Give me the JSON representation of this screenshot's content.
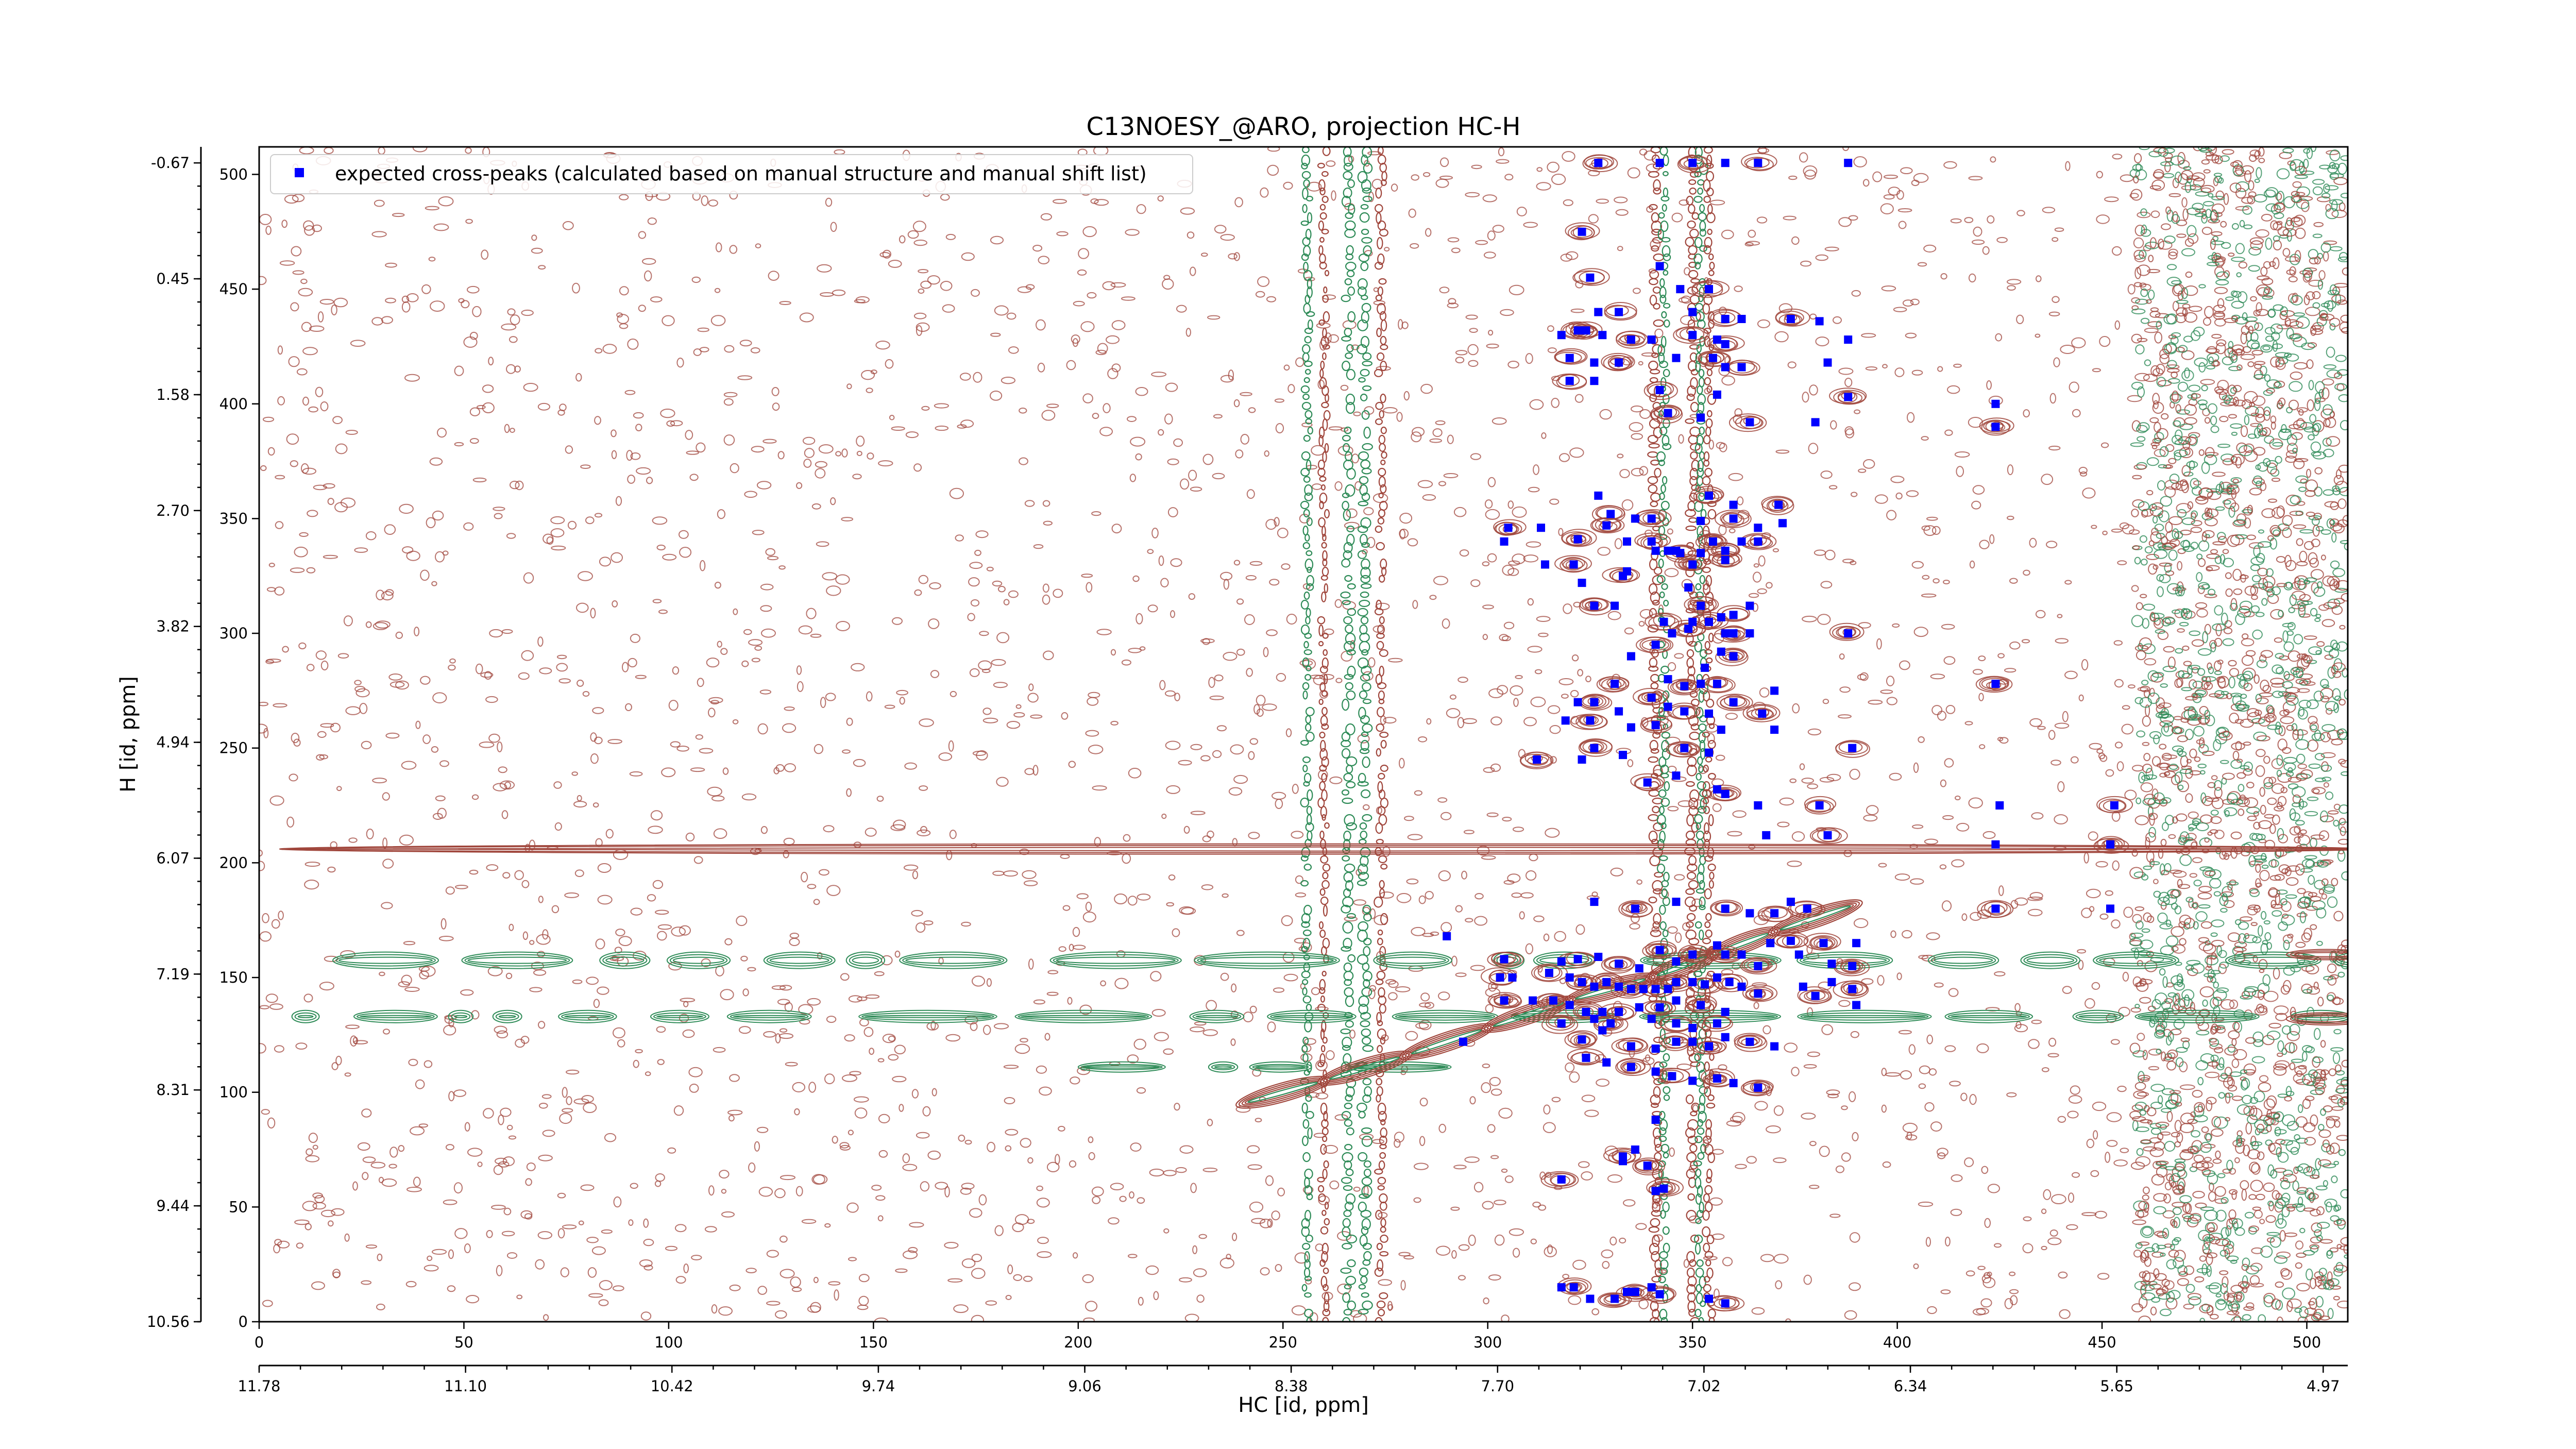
{
  "chart_data": {
    "type": "scatter",
    "title": "C13NOESY_@ARO, projection HC-H",
    "xlabel": "HC [id, ppm]",
    "ylabel": "H [id, ppm]",
    "x_index_range": [
      0,
      510
    ],
    "y_index_range": [
      0,
      512
    ],
    "x_index_ticks": [
      0,
      50,
      100,
      150,
      200,
      250,
      300,
      350,
      400,
      450,
      500
    ],
    "y_index_ticks": [
      0,
      50,
      100,
      150,
      200,
      250,
      300,
      350,
      400,
      450,
      500
    ],
    "x_ppm_tick_labels": [
      "11.78",
      "11.10",
      "10.42",
      "9.74",
      "9.06",
      "8.38",
      "7.70",
      "7.02",
      "6.34",
      "5.65",
      "4.97"
    ],
    "y_ppm_tick_labels": [
      "10.56",
      "9.44",
      "8.31",
      "7.19",
      "6.07",
      "4.94",
      "3.82",
      "2.70",
      "1.58",
      "0.45",
      "-0.67"
    ],
    "legend": {
      "placement": "top-left",
      "entries": [
        {
          "label": "expected cross-peaks (calculated based on manual structure and manual shift list)",
          "color": "#0000ff",
          "marker": "square"
        }
      ]
    },
    "colors": {
      "positive_contours": "#a0463c",
      "negative_contours": "#2e8b57",
      "expected_peaks": "#0000ff"
    },
    "series": [
      {
        "name": "expected cross-peaks (calculated based on manual structure and manual shift list)",
        "points": [
          [
            327,
            505
          ],
          [
            342,
            505
          ],
          [
            350,
            505
          ],
          [
            358,
            505
          ],
          [
            366,
            505
          ],
          [
            388,
            505
          ],
          [
            323,
            475
          ],
          [
            342,
            460
          ],
          [
            325,
            455
          ],
          [
            347,
            450
          ],
          [
            354,
            450
          ],
          [
            327,
            440
          ],
          [
            332,
            440
          ],
          [
            350,
            440
          ],
          [
            358,
            437
          ],
          [
            362,
            437
          ],
          [
            374,
            437
          ],
          [
            381,
            436
          ],
          [
            324,
            432
          ],
          [
            318,
            430
          ],
          [
            322,
            432
          ],
          [
            328,
            430
          ],
          [
            335,
            428
          ],
          [
            340,
            428
          ],
          [
            350,
            430
          ],
          [
            356,
            428
          ],
          [
            358,
            426
          ],
          [
            388,
            428
          ],
          [
            320,
            420
          ],
          [
            326,
            418
          ],
          [
            332,
            418
          ],
          [
            346,
            420
          ],
          [
            355,
            420
          ],
          [
            358,
            416
          ],
          [
            362,
            416
          ],
          [
            383,
            418
          ],
          [
            320,
            410
          ],
          [
            326,
            410
          ],
          [
            342,
            406
          ],
          [
            356,
            404
          ],
          [
            388,
            403
          ],
          [
            424,
            400
          ],
          [
            344,
            396
          ],
          [
            352,
            394
          ],
          [
            364,
            392
          ],
          [
            380,
            392
          ],
          [
            424,
            390
          ],
          [
            327,
            360
          ],
          [
            354,
            360
          ],
          [
            360,
            356
          ],
          [
            330,
            352
          ],
          [
            336,
            350
          ],
          [
            340,
            350
          ],
          [
            352,
            349
          ],
          [
            360,
            350
          ],
          [
            366,
            346
          ],
          [
            371,
            356
          ],
          [
            372,
            348
          ],
          [
            305,
            346
          ],
          [
            313,
            346
          ],
          [
            329,
            347
          ],
          [
            304,
            340
          ],
          [
            322,
            341
          ],
          [
            334,
            340
          ],
          [
            340,
            340
          ],
          [
            346,
            336
          ],
          [
            355,
            340
          ],
          [
            362,
            340
          ],
          [
            366,
            340
          ],
          [
            341,
            336
          ],
          [
            347,
            335
          ],
          [
            352,
            335
          ],
          [
            358,
            336
          ],
          [
            314,
            330
          ],
          [
            321,
            330
          ],
          [
            334,
            327
          ],
          [
            350,
            330
          ],
          [
            344,
            336
          ],
          [
            358,
            332
          ],
          [
            323,
            322
          ],
          [
            333,
            325
          ],
          [
            349,
            320
          ],
          [
            326,
            312
          ],
          [
            331,
            312
          ],
          [
            352,
            312
          ],
          [
            357,
            307
          ],
          [
            360,
            308
          ],
          [
            364,
            312
          ],
          [
            343,
            305
          ],
          [
            350,
            305
          ],
          [
            354,
            305
          ],
          [
            345,
            300
          ],
          [
            349,
            302
          ],
          [
            358,
            300
          ],
          [
            360,
            300
          ],
          [
            364,
            300
          ],
          [
            388,
            300
          ],
          [
            335,
            290
          ],
          [
            341,
            295
          ],
          [
            357,
            292
          ],
          [
            360,
            290
          ],
          [
            353,
            285
          ],
          [
            331,
            278
          ],
          [
            344,
            280
          ],
          [
            348,
            277
          ],
          [
            352,
            278
          ],
          [
            356,
            278
          ],
          [
            322,
            270
          ],
          [
            326,
            270
          ],
          [
            332,
            266
          ],
          [
            340,
            272
          ],
          [
            344,
            268
          ],
          [
            348,
            266
          ],
          [
            354,
            265
          ],
          [
            360,
            270
          ],
          [
            370,
            275
          ],
          [
            424,
            278
          ],
          [
            319,
            262
          ],
          [
            325,
            262
          ],
          [
            335,
            259
          ],
          [
            341,
            260
          ],
          [
            357,
            258
          ],
          [
            367,
            265
          ],
          [
            370,
            258
          ],
          [
            312,
            245
          ],
          [
            323,
            245
          ],
          [
            326,
            250
          ],
          [
            333,
            247
          ],
          [
            348,
            250
          ],
          [
            354,
            248
          ],
          [
            389,
            250
          ],
          [
            346,
            238
          ],
          [
            339,
            235
          ],
          [
            356,
            232
          ],
          [
            358,
            230
          ],
          [
            366,
            225
          ],
          [
            381,
            225
          ],
          [
            368,
            212
          ],
          [
            383,
            212
          ],
          [
            425,
            225
          ],
          [
            453,
            225
          ],
          [
            424,
            208
          ],
          [
            452,
            208
          ],
          [
            326,
            183
          ],
          [
            336,
            180
          ],
          [
            346,
            183
          ],
          [
            358,
            180
          ],
          [
            364,
            178
          ],
          [
            370,
            178
          ],
          [
            374,
            183
          ],
          [
            378,
            180
          ],
          [
            290,
            168
          ],
          [
            304,
            158
          ],
          [
            318,
            157
          ],
          [
            322,
            158
          ],
          [
            327,
            159
          ],
          [
            332,
            156
          ],
          [
            337,
            154
          ],
          [
            342,
            162
          ],
          [
            346,
            157
          ],
          [
            350,
            160
          ],
          [
            356,
            164
          ],
          [
            358,
            160
          ],
          [
            362,
            160
          ],
          [
            366,
            155
          ],
          [
            369,
            165
          ],
          [
            374,
            166
          ],
          [
            376,
            160
          ],
          [
            382,
            165
          ],
          [
            384,
            156
          ],
          [
            389,
            155
          ],
          [
            390,
            165
          ],
          [
            424,
            180
          ],
          [
            452,
            180
          ],
          [
            303,
            150
          ],
          [
            306,
            150
          ],
          [
            315,
            152
          ],
          [
            320,
            150
          ],
          [
            323,
            148
          ],
          [
            326,
            146
          ],
          [
            329,
            148
          ],
          [
            332,
            146
          ],
          [
            335,
            145
          ],
          [
            338,
            145
          ],
          [
            341,
            145
          ],
          [
            344,
            145
          ],
          [
            346,
            148
          ],
          [
            350,
            148
          ],
          [
            353,
            147
          ],
          [
            356,
            150
          ],
          [
            359,
            148
          ],
          [
            362,
            146
          ],
          [
            366,
            143
          ],
          [
            377,
            146
          ],
          [
            380,
            142
          ],
          [
            384,
            148
          ],
          [
            389,
            145
          ],
          [
            390,
            138
          ],
          [
            304,
            140
          ],
          [
            311,
            140
          ],
          [
            316,
            140
          ],
          [
            320,
            138
          ],
          [
            324,
            135
          ],
          [
            328,
            135
          ],
          [
            332,
            135
          ],
          [
            337,
            137
          ],
          [
            342,
            137
          ],
          [
            346,
            140
          ],
          [
            352,
            138
          ],
          [
            358,
            135
          ],
          [
            318,
            130
          ],
          [
            326,
            132
          ],
          [
            330,
            130
          ],
          [
            340,
            132
          ],
          [
            346,
            130
          ],
          [
            350,
            128
          ],
          [
            356,
            130
          ],
          [
            294,
            122
          ],
          [
            323,
            123
          ],
          [
            328,
            127
          ],
          [
            335,
            120
          ],
          [
            341,
            119
          ],
          [
            346,
            122
          ],
          [
            350,
            122
          ],
          [
            354,
            120
          ],
          [
            358,
            124
          ],
          [
            364,
            122
          ],
          [
            370,
            120
          ],
          [
            324,
            115
          ],
          [
            329,
            113
          ],
          [
            335,
            111
          ],
          [
            341,
            109
          ],
          [
            345,
            107
          ],
          [
            350,
            105
          ],
          [
            356,
            106
          ],
          [
            360,
            104
          ],
          [
            366,
            102
          ],
          [
            341,
            88
          ],
          [
            333,
            72
          ],
          [
            336,
            75
          ],
          [
            318,
            62
          ],
          [
            333,
            70
          ],
          [
            339,
            68
          ],
          [
            341,
            57
          ],
          [
            343,
            58
          ],
          [
            318,
            15
          ],
          [
            321,
            15
          ],
          [
            325,
            10
          ],
          [
            331,
            10
          ],
          [
            334,
            13
          ],
          [
            336,
            13
          ],
          [
            340,
            15
          ],
          [
            342,
            12
          ],
          [
            354,
            10
          ],
          [
            358,
            8
          ]
        ]
      }
    ]
  }
}
